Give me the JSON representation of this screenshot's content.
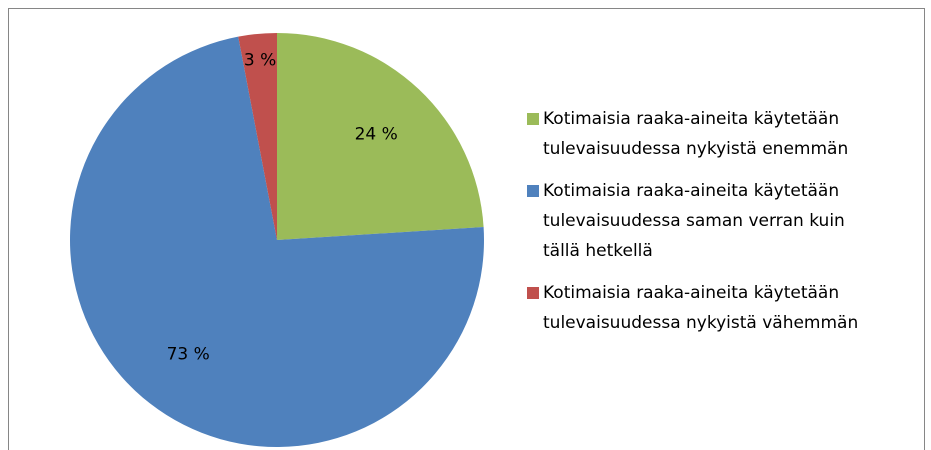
{
  "chart_data": {
    "type": "pie",
    "categories": [
      "Kotimaisia raaka-aineita käytetään tulevaisuudessa nykyistä enemmän",
      "Kotimaisia raaka-aineita käytetään tulevaisuudessa saman verran kuin tällä hetkellä",
      "Kotimaisia raaka-aineita käytetään tulevaisuudessa nykyistä vähemmän"
    ],
    "values": [
      24,
      73,
      3
    ],
    "value_labels": [
      "24 %",
      "73 %",
      "3 %"
    ],
    "colors": [
      "#9bbb59",
      "#4f81bd",
      "#c0504d"
    ],
    "legend": "right"
  }
}
